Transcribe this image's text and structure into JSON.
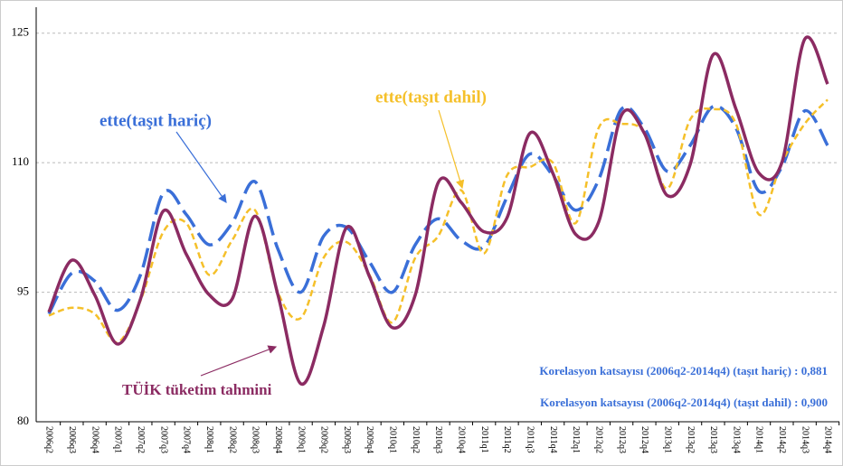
{
  "chart_data": {
    "type": "line",
    "categories": [
      "2006q2",
      "2006q3",
      "2006q4",
      "2007q1",
      "2007q2",
      "2007q3",
      "2007q4",
      "2008q1",
      "2008q2",
      "2008q3",
      "2008q4",
      "2009q1",
      "2009q2",
      "2009q3",
      "2009q4",
      "2010q1",
      "2010q2",
      "2010q3",
      "2010q4",
      "2011q1",
      "2011q2",
      "2011q3",
      "2011q4",
      "2012q1",
      "2012q2",
      "2012q3",
      "2012q4",
      "2013q1",
      "2013q2",
      "2013q3",
      "2013q4",
      "2014q1",
      "2014q2",
      "2014q3",
      "2014q4"
    ],
    "series": [
      {
        "name": "ette(taşıt hariç)",
        "color": "#3a6fd8",
        "dash": "long",
        "values": [
          92.5,
          97.2,
          96.3,
          92.9,
          97,
          106.5,
          104,
          100.5,
          103,
          107.8,
          100,
          95,
          101.5,
          102.5,
          98.5,
          95,
          100.5,
          103.5,
          101,
          100.3,
          106,
          111,
          108.5,
          104.5,
          108,
          116.2,
          114,
          109,
          112,
          116.5,
          114,
          106.7,
          109.5,
          116,
          112
        ]
      },
      {
        "name": "ette(taşıt dahil)",
        "color": "#f5c02a",
        "dash": "short",
        "values": [
          92.3,
          93.2,
          92.5,
          89.2,
          94,
          102,
          103,
          97,
          101,
          104.5,
          95,
          92,
          99,
          100.8,
          97,
          91.5,
          99,
          101.5,
          106.8,
          99.5,
          108.5,
          109.5,
          110,
          103,
          114,
          114.5,
          113.5,
          107,
          115,
          116.2,
          114.5,
          104,
          110,
          114.5,
          117.3
        ]
      },
      {
        "name": "TÜİK tüketim tahmini",
        "color": "#8b2b62",
        "dash": "solid",
        "values": [
          92.7,
          98.7,
          94.7,
          89.0,
          94.2,
          104.4,
          99.4,
          94.7,
          94.2,
          103.8,
          94.7,
          84.4,
          91.1,
          102.5,
          96.8,
          90.9,
          94.7,
          107.7,
          105.4,
          102.0,
          103.6,
          113.4,
          108.8,
          101.7,
          103.1,
          115.5,
          113.4,
          106.2,
          109.8,
          122.5,
          116.2,
          108.8,
          110.0,
          124.3,
          119.1
        ]
      }
    ],
    "annotations": [
      "Korelasyon katsayısı (2006q2-2014q4) (taşıt hariç) : 0,881",
      "Korelasyon katsayısı (2006q2-2014q4) (taşıt dahil) : 0,900"
    ],
    "ylim": [
      80,
      128
    ],
    "yticks": [
      80,
      95,
      110,
      125
    ],
    "grid": true
  }
}
